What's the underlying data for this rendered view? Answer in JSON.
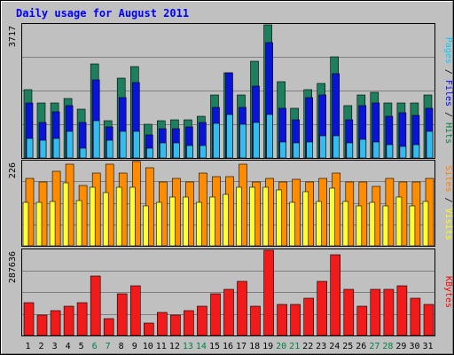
{
  "chart_data": {
    "type": "bar",
    "title": "Daily usage for August 2011",
    "categories": [
      "1",
      "2",
      "3",
      "4",
      "5",
      "6",
      "7",
      "8",
      "9",
      "10",
      "11",
      "12",
      "13",
      "14",
      "15",
      "16",
      "17",
      "18",
      "19",
      "20",
      "21",
      "22",
      "23",
      "24",
      "25",
      "26",
      "27",
      "28",
      "29",
      "30",
      "31"
    ],
    "weekend_days": [
      "6",
      "7",
      "13",
      "14",
      "20",
      "21",
      "27",
      "28"
    ],
    "panels": [
      {
        "id": "hits",
        "max_label": "3717",
        "ymax": 3717,
        "legend": [
          {
            "text": "Pages",
            "color": "#00ccff"
          },
          {
            "text": " / ",
            "color": "#000000"
          },
          {
            "text": "Files",
            "color": "#0000ff"
          },
          {
            "text": " / ",
            "color": "#000000"
          },
          {
            "text": "Hits",
            "color": "#008040"
          }
        ],
        "series": [
          {
            "name": "Hits",
            "color": "#1e7f5e",
            "values": [
              1917,
              1539,
              1539,
              1653,
              1351,
              2636,
              1034,
              2221,
              2560,
              942,
              1034,
              1071,
              1071,
              1169,
              1766,
              2372,
              1766,
              2706,
              3717,
              2143,
              1396,
              1917,
              2070,
              2824,
              1469,
              1766,
              1842,
              1539,
              1539,
              1539,
              1766
            ]
          },
          {
            "name": "Files",
            "color": "#0a14d8",
            "values": [
              1539,
              998,
              1290,
              1466,
              998,
              2183,
              855,
              1692,
              2094,
              636,
              812,
              812,
              855,
              998,
              1405,
              2367,
              1405,
              2003,
              3225,
              1381,
              1071,
              1692,
              1766,
              2357,
              1071,
              1469,
              1539,
              1161,
              1264,
              1186,
              1381
            ]
          },
          {
            "name": "Pages",
            "color": "#33bdee",
            "values": [
              552,
              507,
              546,
              735,
              274,
              1040,
              507,
              735,
              735,
              270,
              412,
              412,
              337,
              337,
              960,
              1202,
              942,
              998,
              1218,
              436,
              412,
              436,
              616,
              616,
              412,
              516,
              435,
              367,
              316,
              361,
              735
            ]
          }
        ]
      },
      {
        "id": "visits",
        "max_label": "226",
        "ymax": 226,
        "legend": [
          {
            "text": "Sites",
            "color": "#ff8000"
          },
          {
            "text": " / ",
            "color": "#000000"
          },
          {
            "text": "Visits",
            "color": "#ffff00"
          }
        ],
        "series": [
          {
            "name": "Sites",
            "color": "#ff8c00",
            "values": [
              181,
              172,
              201,
              219,
              161,
              196,
              219,
              196,
              226,
              209,
              172,
              181,
              172,
              196,
              186,
              186,
              219,
              172,
              181,
              172,
              179,
              172,
              181,
              196,
              172,
              172,
              160,
              181,
              172,
              172,
              181
            ]
          },
          {
            "name": "Visits",
            "color": "#ffff33",
            "values": [
              116,
              117,
              120,
              170,
              122,
              158,
              142,
              158,
              158,
              108,
              117,
              131,
              131,
              116,
              131,
              137,
              158,
              158,
              158,
              150,
              116,
              144,
              119,
              154,
              119,
              108,
              117,
              108,
              131,
              108,
              119
            ]
          }
        ]
      },
      {
        "id": "kbytes",
        "max_label": "287636",
        "ymax": 287636,
        "legend": [
          {
            "text": "KBytes",
            "color": "#ff0000"
          }
        ],
        "series": [
          {
            "name": "KBytes",
            "color": "#f21b1b",
            "values": [
              112250,
              70100,
              84140,
              98170,
              112250,
              201540,
              56100,
              140300,
              168360,
              42110,
              77120,
              70100,
              84140,
              98170,
              140300,
              154320,
              182190,
              98170,
              287636,
              105210,
              105210,
              126290,
              182190,
              273520,
              154320,
              98170,
              154320,
              154320,
              168360,
              126290,
              105210
            ]
          }
        ]
      }
    ]
  },
  "colors": {
    "background": "#c0c0c0",
    "title": "#0000ff",
    "weekend_label": "#008040",
    "day_label": "#000000"
  }
}
